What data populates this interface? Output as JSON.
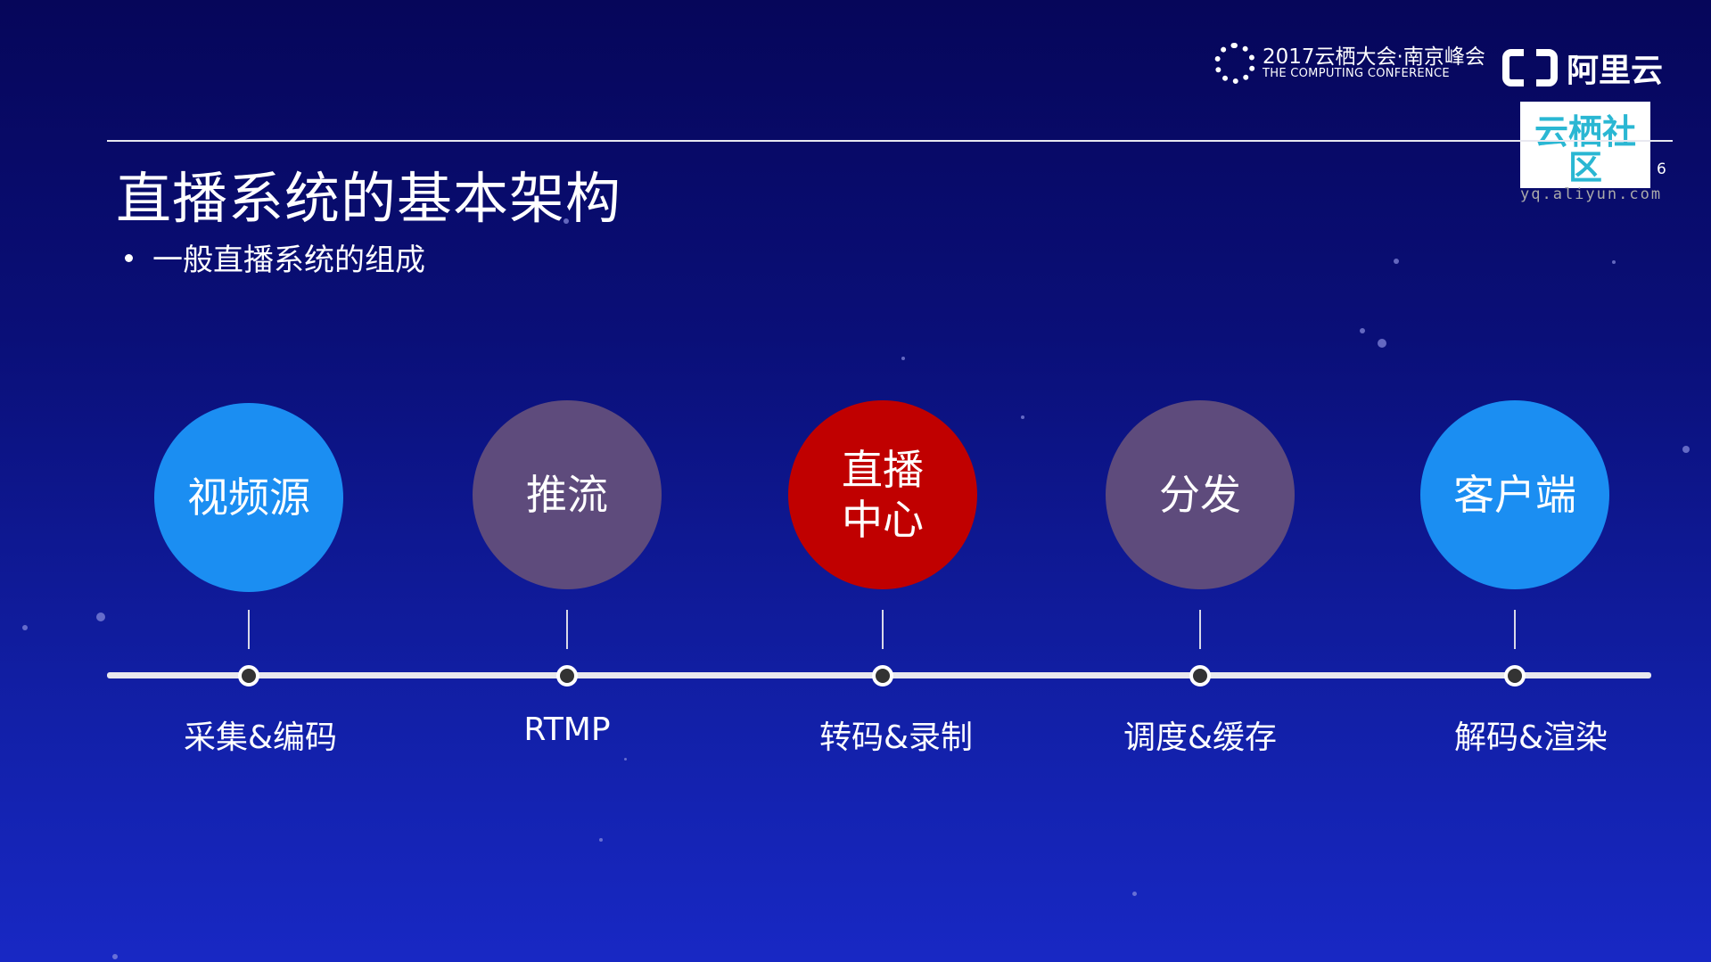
{
  "header": {
    "conference_title": "2017云栖大会·南京峰会",
    "conference_subtitle": "THE COMPUTING CONFERENCE",
    "brand": "阿里云",
    "community_logo": "云栖社区",
    "community_url": "yq.aliyun.com",
    "page_number": "6"
  },
  "slide": {
    "title": "直播系统的基本架构",
    "bullet": "一般直播系统的组成"
  },
  "stages": [
    {
      "name": "视频源",
      "label": "采集&编码",
      "color": "#1b8ef2"
    },
    {
      "name": "推流",
      "label": "RTMP",
      "color": "#5e4b7c"
    },
    {
      "name": "直播\n中心",
      "label": "转码&录制",
      "color": "#c00000"
    },
    {
      "name": "分发",
      "label": "调度&缓存",
      "color": "#5e4b7c"
    },
    {
      "name": "客户端",
      "label": "解码&渲染",
      "color": "#1b8ef2"
    }
  ]
}
